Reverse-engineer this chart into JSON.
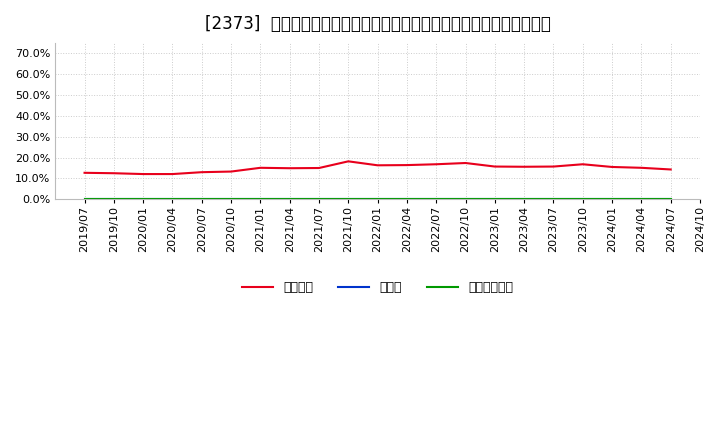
{
  "title": "[2373]  自己資本、のれん、繰延税金資産の総資産に対する比率の推移",
  "background_color": "#ffffff",
  "plot_bg_color": "#ffffff",
  "grid_color": "#cccccc",
  "ylim": [
    0.0,
    0.75
  ],
  "yticks": [
    0.0,
    0.1,
    0.2,
    0.3,
    0.4,
    0.5,
    0.6,
    0.7
  ],
  "x_labels": [
    "2019/07",
    "2019/10",
    "2020/01",
    "2020/04",
    "2020/07",
    "2020/10",
    "2021/01",
    "2021/04",
    "2021/07",
    "2021/10",
    "2022/01",
    "2022/04",
    "2022/07",
    "2022/10",
    "2023/01",
    "2023/04",
    "2023/07",
    "2023/10",
    "2024/01",
    "2024/04",
    "2024/07",
    "2024/10"
  ],
  "jikoshihon": [
    0.127,
    0.125,
    0.121,
    0.121,
    0.13,
    0.133,
    0.151,
    0.149,
    0.15,
    0.182,
    0.163,
    0.164,
    0.168,
    0.174,
    0.157,
    0.156,
    0.157,
    0.168,
    0.155,
    0.151,
    0.143,
    null
  ],
  "noren": [
    0.0,
    0.0,
    0.0,
    0.0,
    0.0,
    0.0,
    0.0,
    0.0,
    0.0,
    0.0,
    0.0,
    0.0,
    0.0,
    0.0,
    0.0,
    0.0,
    0.0,
    0.0,
    0.0,
    0.0,
    0.0,
    null
  ],
  "kurinobezeikinjisan": [
    0.0,
    0.0,
    0.0,
    0.0,
    0.0,
    0.0,
    0.0,
    0.0,
    0.0,
    0.0,
    0.0,
    0.0,
    0.0,
    0.0,
    0.0,
    0.0,
    0.0,
    0.0,
    0.0,
    0.0,
    0.0,
    null
  ],
  "line_color_jikoshihon": "#e8001c",
  "line_color_noren": "#0033cc",
  "line_color_kurinobezeikinjisan": "#009900",
  "legend_labels": [
    "自己資本",
    "のれん",
    "繰延税金資産"
  ],
  "title_fontsize": 12,
  "tick_fontsize": 8,
  "legend_fontsize": 9
}
